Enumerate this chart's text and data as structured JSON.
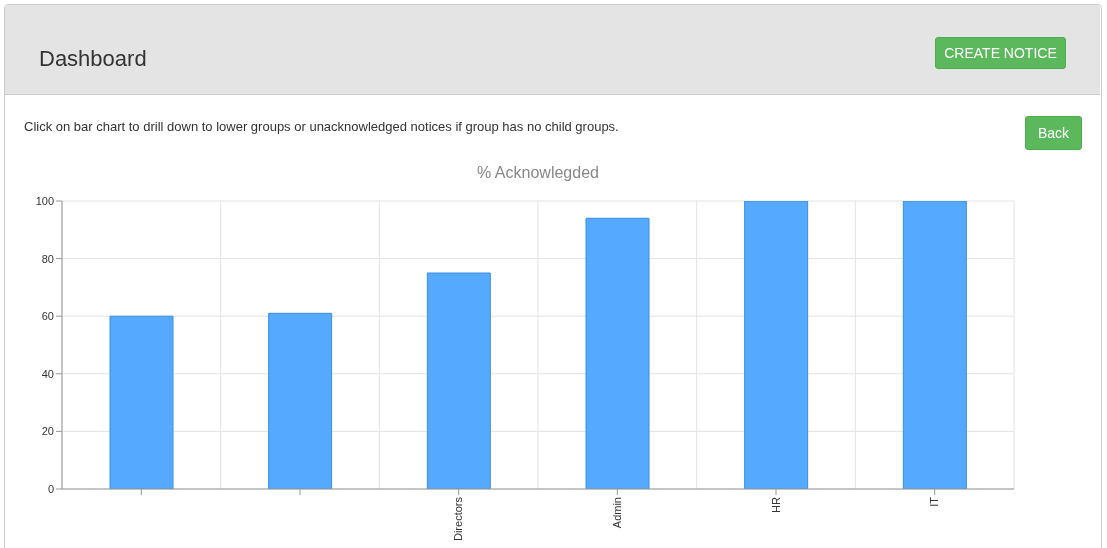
{
  "chart_data": {
    "type": "bar",
    "title": "% Acknowlegded",
    "annotations": [
      "Dashboard",
      "CREATE NOTICE",
      "Click on bar chart to drill down to lower groups or unacknowledged notices if group has no child groups.",
      "Back"
    ],
    "categories": [
      null,
      null,
      "Directors",
      "Admin",
      "HR",
      "IT"
    ],
    "values": [
      60,
      61,
      75,
      94,
      100,
      100
    ],
    "color": "#55aaff",
    "ylim": [
      0,
      100
    ],
    "yticks": [
      0,
      20,
      40,
      60,
      80,
      100
    ],
    "grid": true,
    "legend": false
  }
}
